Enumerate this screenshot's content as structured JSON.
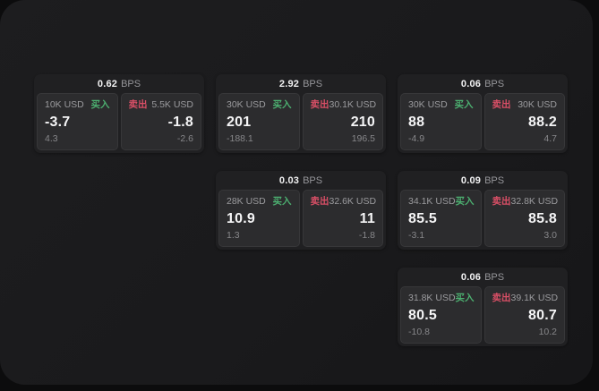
{
  "labels": {
    "buy": "买入",
    "sell": "卖出",
    "bps": "BPS"
  },
  "colors": {
    "buy": "#4caf70",
    "sell": "#d94f66",
    "panel_bg": "#1a1a1c",
    "card_bg": "#202022",
    "subpanel_bg": "#2c2c2e",
    "page_bg": "#0c0c0d"
  },
  "cards": [
    {
      "bps": "0.62",
      "buy": {
        "amount": "10K USD",
        "value": "-3.7",
        "sub": "4.3"
      },
      "sell": {
        "amount": "5.5K USD",
        "value": "-1.8",
        "sub": "-2.6"
      }
    },
    {
      "bps": "2.92",
      "buy": {
        "amount": "30K USD",
        "value": "201",
        "sub": "-188.1"
      },
      "sell": {
        "amount": "30.1K USD",
        "value": "210",
        "sub": "196.5"
      }
    },
    {
      "bps": "0.06",
      "buy": {
        "amount": "30K USD",
        "value": "88",
        "sub": "-4.9"
      },
      "sell": {
        "amount": "30K USD",
        "value": "88.2",
        "sub": "4.7"
      }
    },
    {
      "bps": "0.03",
      "buy": {
        "amount": "28K USD",
        "value": "10.9",
        "sub": "1.3"
      },
      "sell": {
        "amount": "32.6K USD",
        "value": "11",
        "sub": "-1.8"
      }
    },
    {
      "bps": "0.09",
      "buy": {
        "amount": "34.1K USD",
        "value": "85.5",
        "sub": "-3.1"
      },
      "sell": {
        "amount": "32.8K USD",
        "value": "85.8",
        "sub": "3.0"
      }
    },
    {
      "bps": "0.06",
      "buy": {
        "amount": "31.8K USD",
        "value": "80.5",
        "sub": "-10.8"
      },
      "sell": {
        "amount": "39.1K USD",
        "value": "80.7",
        "sub": "10.2"
      }
    }
  ]
}
